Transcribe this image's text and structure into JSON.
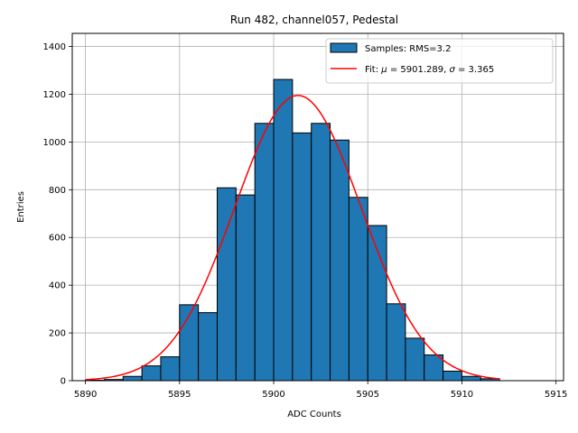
{
  "chart_data": {
    "type": "bar",
    "title": "Run 482, channel057, Pedestal",
    "xlabel": "ADC Counts",
    "ylabel": "Entries",
    "xlim": [
      5889.3,
      5915.4
    ],
    "ylim": [
      0,
      1455
    ],
    "grid": true,
    "x_ticks": [
      5890,
      5895,
      5900,
      5905,
      5910,
      5915
    ],
    "y_ticks": [
      0,
      200,
      400,
      600,
      800,
      1000,
      1200,
      1400
    ],
    "histogram": {
      "name": "Samples: RMS=3.2",
      "bin_edges": [
        5890,
        5891,
        5892,
        5893,
        5894,
        5895,
        5896,
        5897,
        5898,
        5899,
        5900,
        5901,
        5902,
        5903,
        5904,
        5905,
        5906,
        5907,
        5908,
        5909,
        5910,
        5911,
        5912
      ],
      "counts": [
        2,
        5,
        18,
        62,
        100,
        318,
        285,
        808,
        778,
        1078,
        1262,
        1038,
        1078,
        1008,
        768,
        650,
        322,
        178,
        108,
        40,
        18,
        8
      ],
      "color": "#1f77b4",
      "edge_color": "#000000"
    },
    "fit": {
      "name": "Fit: μ = 5901.289, σ = 3.365",
      "name_parts": [
        "Fit: ",
        "μ",
        " = 5901.289, ",
        "σ",
        " = 3.365"
      ],
      "mu": 5901.289,
      "sigma": 3.365,
      "peak": 1195,
      "x_range": [
        5890,
        5912
      ],
      "color": "#ff0000"
    },
    "legend": "top-right"
  }
}
